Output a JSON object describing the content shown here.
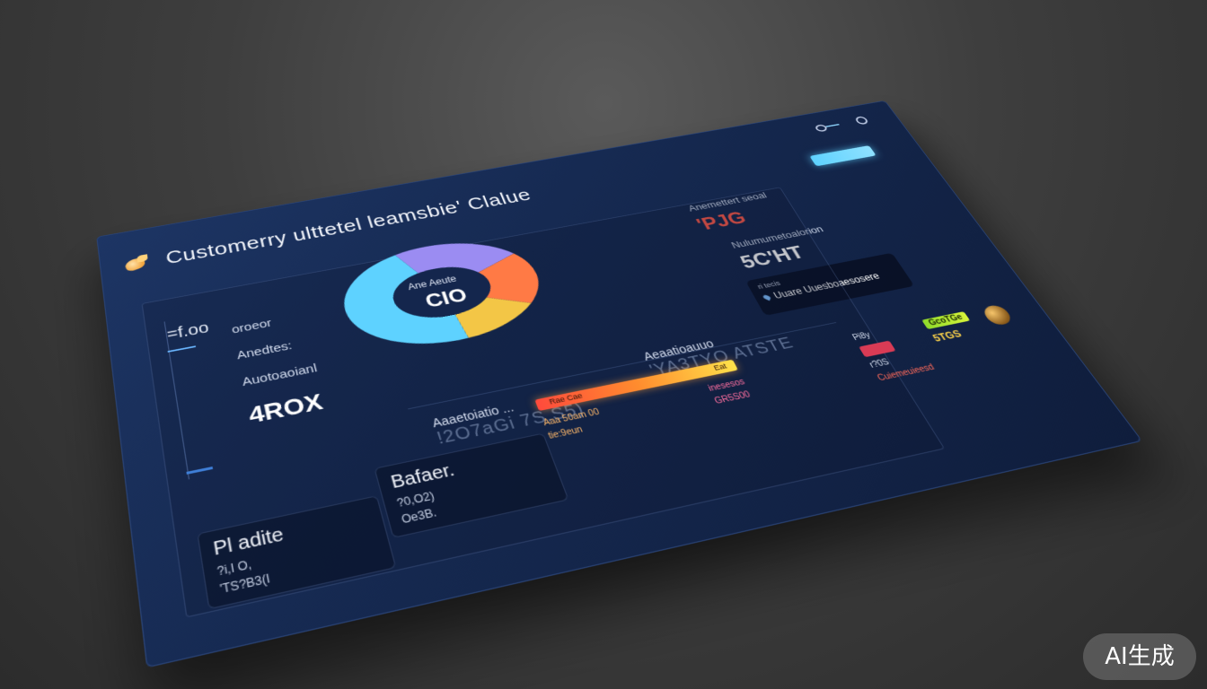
{
  "header": {
    "title": "Customerry ulttetel leamsbie' Clalue"
  },
  "top": {
    "button_label": ""
  },
  "stats": [
    {
      "label": "Anemettert seoal",
      "value": "'PJG"
    },
    {
      "label": "Nulumumetoalorion",
      "value": "5C'HT"
    }
  ],
  "donut": {
    "center_label": "Ane Aeute",
    "center_value": "CIO",
    "slices": [
      {
        "name": "violet",
        "value": 22,
        "color": "#9b8cf2"
      },
      {
        "name": "orange",
        "value": 18,
        "color": "#ff7a45"
      },
      {
        "name": "yellow",
        "value": 14,
        "color": "#f3c646"
      },
      {
        "name": "cyan",
        "value": 46,
        "color": "#5ed2ff"
      }
    ]
  },
  "left": {
    "axis_top": "=f.oo",
    "metrics": [
      "oroeor",
      "Anedtes:",
      "Auotoaoianl"
    ],
    "big_value": "4ROX"
  },
  "mid": {
    "block1": {
      "a": "Aaaetoiatio ...",
      "b": "!2O7aGi 7S.S5)"
    },
    "block2": {
      "a": "Aeaatioauuo",
      "b": "'YA3TYO ATSTE"
    }
  },
  "cards": [
    {
      "title": "Pl adite",
      "sub1": "?i,I O,",
      "sub2": "'TS?B3(I"
    },
    {
      "title": "Bafaer.",
      "sub1": "?0,O2)",
      "sub2": "Oe3B."
    }
  ],
  "progress": {
    "fill_fraction": 1.0,
    "left_label": "Rae Cae",
    "right_label": "Eat",
    "col1": [
      "Aaa 50am 00",
      "tie:9eun"
    ],
    "col2": [
      "inesesos",
      "GR5S00"
    ]
  },
  "alert": {
    "tiny": "ri tecis",
    "main": "Uuare Uuesboaesosere"
  },
  "right_cluster": {
    "small1": "Pi8y",
    "small2": "r?0S",
    "red": "Cuiemeuieesd",
    "green_tag": "GcoTGe",
    "yellow_val": "5TGS"
  },
  "badge": {
    "text": "AI生成"
  }
}
